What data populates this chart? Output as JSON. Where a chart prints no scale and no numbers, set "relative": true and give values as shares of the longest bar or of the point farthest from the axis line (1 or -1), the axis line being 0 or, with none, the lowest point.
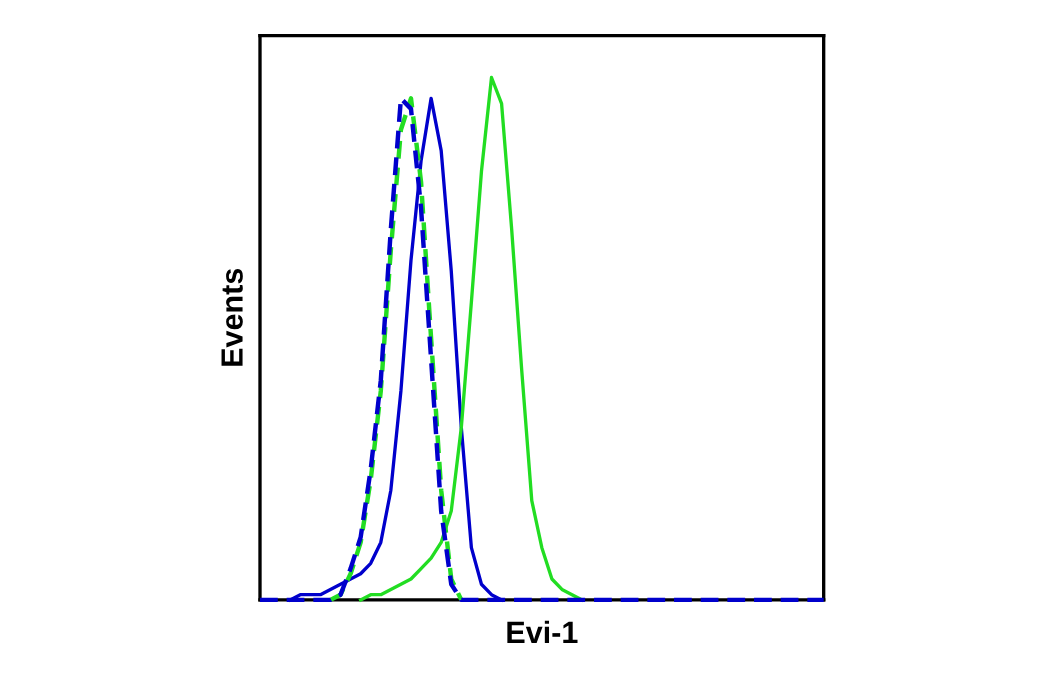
{
  "chart_data": {
    "type": "line",
    "relative": true,
    "xlabel": "Evi-1",
    "ylabel": "Events",
    "legend": false,
    "grid": false,
    "marker": "none",
    "categories": [
      null,
      null,
      null,
      null,
      null,
      null,
      null,
      null,
      null,
      null,
      null,
      null,
      null,
      null,
      null,
      null,
      null,
      null,
      null,
      null,
      null,
      null,
      null,
      null,
      null,
      null,
      null,
      null,
      null,
      null,
      null,
      null,
      null,
      null,
      null,
      null,
      null,
      null,
      null,
      null,
      null,
      null,
      null,
      null,
      null,
      null,
      null,
      null,
      null,
      null,
      null,
      null,
      null,
      null,
      null,
      null,
      null
    ],
    "series": [
      {
        "color": "#0000cc",
        "line_style": "solid",
        "values": [
          null,
          null,
          null,
          0,
          0.01,
          0.01,
          0.01,
          0.02,
          0.03,
          0.04,
          0.05,
          0.07,
          0.11,
          0.21,
          0.4,
          0.65,
          0.84,
          0.96,
          0.86,
          0.63,
          0.33,
          0.1,
          0.03,
          0.01,
          0,
          null,
          null,
          null,
          null,
          null,
          null,
          null,
          null,
          null,
          null,
          null,
          null,
          null,
          null,
          null,
          null,
          null,
          null,
          null,
          null,
          null,
          null,
          null,
          null,
          null,
          null,
          null,
          null,
          null,
          null,
          null,
          null
        ]
      },
      {
        "color": "#22dd22",
        "line_style": "solid",
        "values": [
          null,
          null,
          null,
          null,
          null,
          null,
          null,
          null,
          null,
          null,
          0,
          0.01,
          0.01,
          0.02,
          0.03,
          0.04,
          0.06,
          0.08,
          0.11,
          0.17,
          0.33,
          0.57,
          0.82,
          1.0,
          0.95,
          0.71,
          0.44,
          0.19,
          0.1,
          0.04,
          0.02,
          0.01,
          0,
          null,
          null,
          null,
          null,
          null,
          null,
          null,
          null,
          null,
          null,
          null,
          null,
          null,
          null,
          null,
          null,
          null,
          null,
          null,
          null,
          null,
          null,
          null,
          null
        ]
      },
      {
        "color": "#22dd22",
        "line_style": "dashed",
        "values": [
          null,
          null,
          null,
          null,
          null,
          null,
          null,
          0,
          0.01,
          0.05,
          0.11,
          0.23,
          0.4,
          0.67,
          0.9,
          0.96,
          0.8,
          0.5,
          0.21,
          0.04,
          0,
          null,
          null,
          null,
          null,
          null,
          null,
          null,
          null,
          null,
          null,
          null,
          null,
          null,
          null,
          null,
          null,
          null,
          null,
          null,
          null,
          null,
          null,
          null,
          null,
          null,
          null,
          null,
          null,
          null,
          null,
          null,
          null,
          null,
          null,
          null,
          null
        ]
      },
      {
        "color": "#0000cc",
        "line_style": "dashed",
        "values": [
          0,
          0,
          0,
          0,
          0,
          0,
          0,
          0,
          0.01,
          0.06,
          0.12,
          0.25,
          0.42,
          0.71,
          0.96,
          0.94,
          0.75,
          0.46,
          0.17,
          0.03,
          0,
          0,
          0,
          0,
          0,
          0,
          0,
          0,
          0,
          0,
          0,
          0,
          0,
          0,
          0,
          0,
          0,
          0,
          0,
          0,
          0,
          0,
          0,
          0,
          0,
          0,
          0,
          0,
          0,
          0,
          0,
          0,
          0,
          0,
          0,
          0,
          0
        ]
      }
    ]
  }
}
